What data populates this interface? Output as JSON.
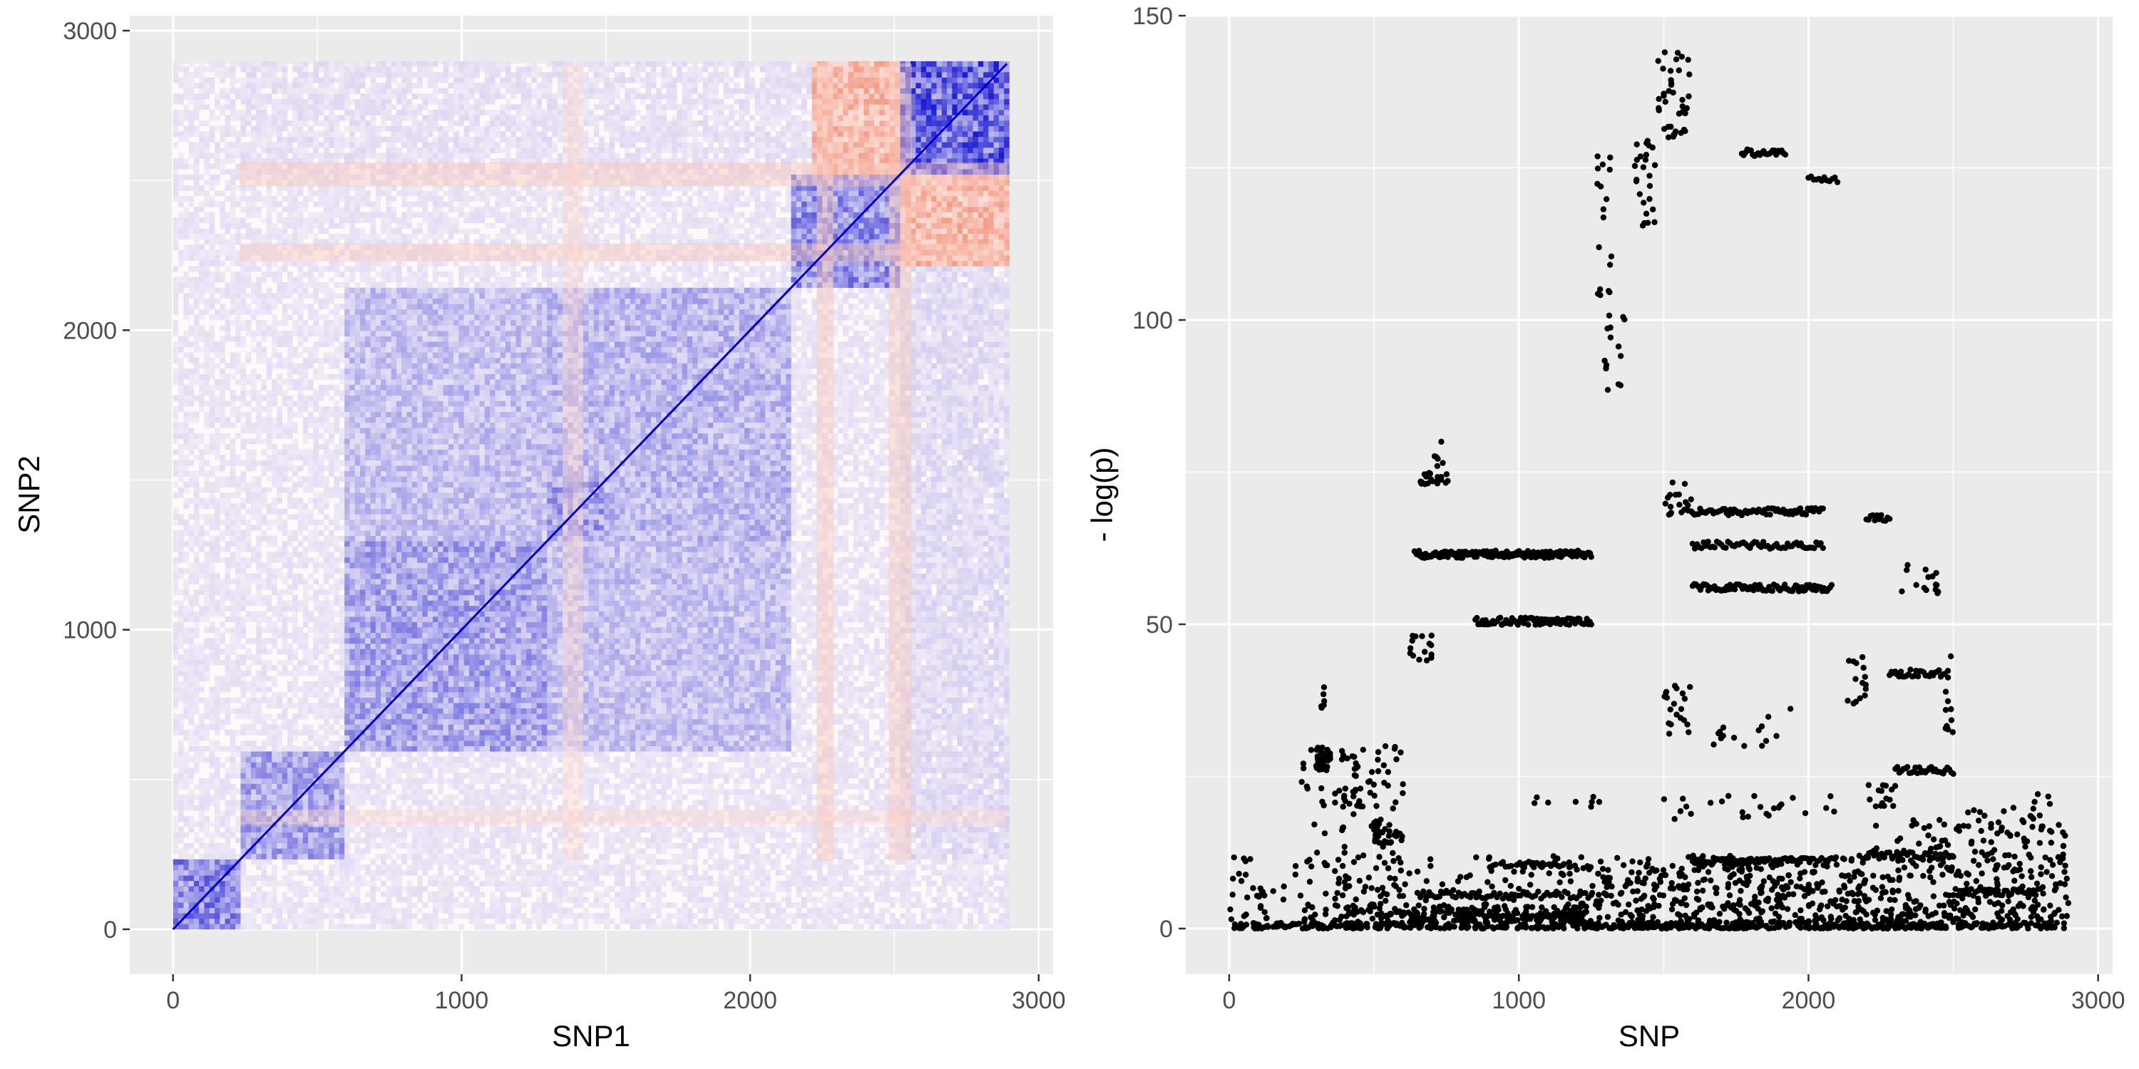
{
  "chart_data": [
    {
      "type": "heatmap",
      "title": "",
      "xlabel": "SNP1",
      "ylabel": "SNP2",
      "xlim": [
        -150,
        3050
      ],
      "ylim": [
        -150,
        3050
      ],
      "x_ticks": [
        0,
        1000,
        2000,
        3000
      ],
      "y_ticks": [
        0,
        1000,
        2000,
        3000
      ],
      "x_tick_labels": [
        "0",
        "1000",
        "2000",
        "3000"
      ],
      "y_tick_labels": [
        "0",
        "1000",
        "2000",
        "3000"
      ],
      "grid": true,
      "legend": "none",
      "colors": {
        "panel_background": "#ebebeb",
        "grid_line": "#ffffff",
        "positive_high": "#0000cc",
        "positive_mid": "#7b68ee",
        "neutral": "#fff8f8",
        "negative_high": "#e8552e"
      },
      "data_extent": {
        "snp_min": 0,
        "snp_max": 2890
      },
      "correlation_blocks": [
        {
          "x": [
            0,
            230
          ],
          "y": [
            0,
            230
          ],
          "value": 0.6
        },
        {
          "x": [
            230,
            600
          ],
          "y": [
            230,
            600
          ],
          "value": 0.45
        },
        {
          "x": [
            600,
            1300
          ],
          "y": [
            600,
            1300
          ],
          "value": 0.45
        },
        {
          "x": [
            600,
            1300
          ],
          "y": [
            1300,
            2150
          ],
          "value": 0.3
        },
        {
          "x": [
            1300,
            2150
          ],
          "y": [
            600,
            1300
          ],
          "value": 0.3
        },
        {
          "x": [
            1300,
            1500
          ],
          "y": [
            1300,
            1500
          ],
          "value": 0.5
        },
        {
          "x": [
            1300,
            2150
          ],
          "y": [
            1300,
            2150
          ],
          "value": 0.35
        },
        {
          "x": [
            2150,
            2520
          ],
          "y": [
            2150,
            2520
          ],
          "value": 0.55
        },
        {
          "x": [
            2520,
            2890
          ],
          "y": [
            2520,
            2890
          ],
          "value": 0.8
        },
        {
          "x": [
            2220,
            2520
          ],
          "y": [
            2520,
            2890
          ],
          "value": -0.5
        },
        {
          "x": [
            2520,
            2890
          ],
          "y": [
            2220,
            2520
          ],
          "value": -0.5
        },
        {
          "x": [
            230,
            2520
          ],
          "y": [
            2520,
            2890
          ],
          "value": 0.12
        },
        {
          "x": [
            2520,
            2890
          ],
          "y": [
            230,
            2520
          ],
          "value": 0.15
        }
      ],
      "negative_bands": [
        {
          "axis": "y",
          "range": [
            2480,
            2560
          ],
          "value": -0.3
        },
        {
          "axis": "y",
          "range": [
            2230,
            2290
          ],
          "value": -0.3
        },
        {
          "axis": "y",
          "range": [
            350,
            400
          ],
          "value": -0.2
        },
        {
          "axis": "x",
          "range": [
            2480,
            2560
          ],
          "value": -0.3
        },
        {
          "axis": "x",
          "range": [
            2230,
            2290
          ],
          "value": -0.3
        },
        {
          "axis": "x",
          "range": [
            1350,
            1420
          ],
          "value": -0.2
        }
      ]
    },
    {
      "type": "scatter",
      "title": "",
      "xlabel": "SNP",
      "ylabel": "- log(p)",
      "xlim": [
        -150,
        3050
      ],
      "ylim": [
        -7.5,
        150
      ],
      "x_ticks": [
        0,
        1000,
        2000,
        3000
      ],
      "y_ticks": [
        0,
        50,
        100,
        150
      ],
      "x_tick_labels": [
        "0",
        "1000",
        "2000",
        "3000"
      ],
      "y_tick_labels": [
        "0",
        "50",
        "100",
        "150"
      ],
      "grid": true,
      "legend": "none",
      "colors": {
        "panel_background": "#ebebeb",
        "grid_line": "#ffffff",
        "point": "#000000"
      },
      "point_clusters": [
        {
          "x": [
            0,
            2890
          ],
          "y": [
            0,
            1
          ],
          "count": 420
        },
        {
          "x": [
            0,
            2890
          ],
          "y": [
            0,
            12
          ],
          "count": 480
        },
        {
          "x": [
            250,
            600
          ],
          "y": [
            0,
            30
          ],
          "count": 100
        },
        {
          "x": [
            500,
            600
          ],
          "y": [
            14,
            18
          ],
          "count": 30
        },
        {
          "x": [
            400,
            1250
          ],
          "y": [
            2,
            4
          ],
          "count": 100
        },
        {
          "x": [
            600,
            1250
          ],
          "y": [
            1,
            2.5
          ],
          "count": 90
        },
        {
          "x": [
            1250,
            1600
          ],
          "y": [
            0,
            10
          ],
          "count": 110
        },
        {
          "x": [
            1600,
            2200
          ],
          "y": [
            0,
            12
          ],
          "count": 210
        },
        {
          "x": [
            2200,
            2900
          ],
          "y": [
            0,
            18
          ],
          "count": 210
        },
        {
          "x": [
            300,
            350
          ],
          "y": [
            26,
            30
          ],
          "count": 40
        },
        {
          "x": [
            310,
            330
          ],
          "y": [
            35,
            41
          ],
          "count": 6
        },
        {
          "x": [
            380,
            600
          ],
          "y": [
            20,
            30
          ],
          "count": 30
        },
        {
          "x": [
            660,
            760
          ],
          "y": [
            73,
            75
          ],
          "count": 25
        },
        {
          "x": [
            700,
            740
          ],
          "y": [
            76,
            80
          ],
          "count": 6
        },
        {
          "x": [
            620,
            700
          ],
          "y": [
            44,
            50
          ],
          "count": 15
        },
        {
          "x": [
            900,
            1250
          ],
          "y": [
            10,
            11
          ],
          "count": 40
        },
        {
          "x": [
            1000,
            1300
          ],
          "y": [
            20,
            22
          ],
          "count": 8
        },
        {
          "x": [
            1280,
            1370
          ],
          "y": [
            88,
            101
          ],
          "count": 14
        },
        {
          "x": [
            1270,
            1320
          ],
          "y": [
            104,
            128
          ],
          "count": 18
        },
        {
          "x": [
            1400,
            1470
          ],
          "y": [
            115,
            130
          ],
          "count": 25
        },
        {
          "x": [
            1480,
            1600
          ],
          "y": [
            130,
            144
          ],
          "count": 40
        },
        {
          "x": [
            1500,
            1600
          ],
          "y": [
            68,
            74
          ],
          "count": 20
        },
        {
          "x": [
            1500,
            1600
          ],
          "y": [
            32,
            40
          ],
          "count": 20
        },
        {
          "x": [
            1500,
            2100
          ],
          "y": [
            18,
            22
          ],
          "count": 25
        },
        {
          "x": [
            1650,
            1950
          ],
          "y": [
            30,
            37
          ],
          "count": 15
        },
        {
          "x": [
            2130,
            2200
          ],
          "y": [
            35,
            45
          ],
          "count": 15
        },
        {
          "x": [
            2200,
            2300
          ],
          "y": [
            20,
            24
          ],
          "count": 15
        },
        {
          "x": [
            2300,
            2450
          ],
          "y": [
            55,
            60
          ],
          "count": 15
        },
        {
          "x": [
            2470,
            2500
          ],
          "y": [
            30,
            50
          ],
          "count": 12
        },
        {
          "x": [
            2550,
            2800
          ],
          "y": [
            12,
            20
          ],
          "count": 30
        },
        {
          "x": [
            2780,
            2850
          ],
          "y": [
            20,
            24
          ],
          "count": 4
        }
      ],
      "point_bands": [
        {
          "x": [
            640,
            1250
          ],
          "y": 61.5,
          "count": 160
        },
        {
          "x": [
            850,
            1250
          ],
          "y": 50.5,
          "count": 80
        },
        {
          "x": [
            650,
            1250
          ],
          "y": 5.5,
          "count": 60
        },
        {
          "x": [
            1770,
            1920
          ],
          "y": 127.5,
          "count": 25
        },
        {
          "x": [
            1600,
            2050
          ],
          "y": 68.5,
          "count": 70
        },
        {
          "x": [
            1600,
            2050
          ],
          "y": 63,
          "count": 60
        },
        {
          "x": [
            1600,
            2080
          ],
          "y": 56,
          "count": 90
        },
        {
          "x": [
            1600,
            2080
          ],
          "y": 11,
          "count": 70
        },
        {
          "x": [
            2000,
            2100
          ],
          "y": 123,
          "count": 12
        },
        {
          "x": [
            2200,
            2280
          ],
          "y": 67.5,
          "count": 12
        },
        {
          "x": [
            2280,
            2470
          ],
          "y": 42,
          "count": 30
        },
        {
          "x": [
            2300,
            2500
          ],
          "y": 26,
          "count": 30
        },
        {
          "x": [
            2200,
            2500
          ],
          "y": 12,
          "count": 35
        },
        {
          "x": [
            2500,
            2800
          ],
          "y": 6,
          "count": 40
        }
      ]
    }
  ]
}
